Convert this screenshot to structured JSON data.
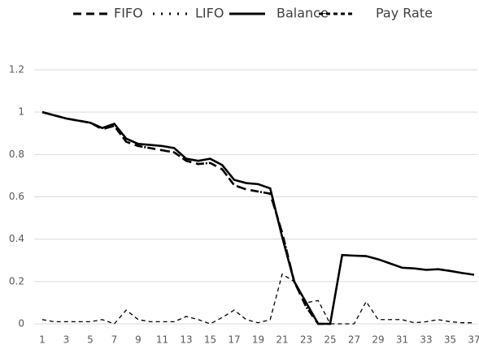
{
  "chart_data": {
    "type": "line",
    "x": [
      1,
      2,
      3,
      4,
      5,
      6,
      7,
      8,
      9,
      10,
      11,
      12,
      13,
      14,
      15,
      16,
      17,
      18,
      19,
      20,
      21,
      22,
      23,
      24,
      25,
      26,
      27,
      28,
      29,
      30,
      31,
      32,
      33,
      34,
      35,
      36,
      37
    ],
    "xlim": [
      1,
      37
    ],
    "xticks": [
      1,
      3,
      5,
      7,
      9,
      11,
      13,
      15,
      17,
      19,
      21,
      23,
      25,
      27,
      29,
      31,
      33,
      35,
      37
    ],
    "ylim": [
      0,
      1.2
    ],
    "yticks": [
      0,
      0.2,
      0.4,
      0.6,
      0.8,
      1,
      1.2
    ],
    "grid": true,
    "legend": "top",
    "series": [
      {
        "name": "FIFO",
        "color": "#000000",
        "dash": "10,6",
        "width": 2.6,
        "values": [
          1.0,
          0.985,
          0.97,
          0.96,
          0.95,
          0.92,
          0.935,
          0.86,
          0.84,
          0.83,
          0.82,
          0.81,
          0.77,
          0.755,
          0.76,
          0.73,
          0.655,
          0.635,
          0.625,
          0.615,
          0.43,
          0.2,
          0.08,
          0,
          0,
          null,
          null,
          null,
          null,
          null,
          null,
          null,
          null,
          null,
          null,
          null,
          null
        ]
      },
      {
        "name": "LIFO",
        "color": "#000000",
        "dash": "2,8",
        "width": 2.6,
        "values": [
          1.0,
          0.985,
          0.97,
          0.96,
          0.95,
          0.92,
          0.935,
          0.86,
          0.84,
          0.83,
          0.82,
          0.81,
          0.77,
          0.755,
          0.76,
          0.73,
          0.655,
          0.635,
          0.625,
          0.615,
          0.43,
          0.2,
          0.08,
          0,
          0,
          null,
          null,
          null,
          null,
          null,
          null,
          null,
          null,
          null,
          null,
          null,
          null
        ]
      },
      {
        "name": "Balance",
        "color": "#000000",
        "dash": "none",
        "width": 2.6,
        "values": [
          1.0,
          0.985,
          0.97,
          0.96,
          0.95,
          0.925,
          0.945,
          0.875,
          0.85,
          0.845,
          0.84,
          0.83,
          0.78,
          0.77,
          0.78,
          0.75,
          0.68,
          0.665,
          0.66,
          0.64,
          0.41,
          0.2,
          0.1,
          0,
          0,
          0.325,
          0.322,
          0.32,
          0.305,
          0.285,
          0.265,
          0.262,
          0.255,
          0.258,
          0.25,
          0.24,
          0.232
        ]
      },
      {
        "name": "Pay Rate",
        "color": "#000000",
        "dash": "5,4",
        "width": 1.3,
        "values": [
          0.02,
          0.01,
          0.01,
          0.01,
          0.01,
          0.02,
          0,
          0.065,
          0.02,
          0.01,
          0.01,
          0.01,
          0.035,
          0.02,
          0,
          0.03,
          0.065,
          0.02,
          0.005,
          0.02,
          0.235,
          0.2,
          0.1,
          0.11,
          0,
          0,
          0,
          0.105,
          0.02,
          0.02,
          0.02,
          0.005,
          0.01,
          0.02,
          0.01,
          0.005,
          0.005
        ]
      }
    ]
  }
}
